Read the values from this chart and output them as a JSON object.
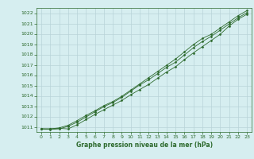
{
  "x": [
    0,
    1,
    2,
    3,
    4,
    5,
    6,
    7,
    8,
    9,
    10,
    11,
    12,
    13,
    14,
    15,
    16,
    17,
    18,
    19,
    20,
    21,
    22,
    23
  ],
  "line1": [
    1010.8,
    1010.8,
    1010.85,
    1010.8,
    1011.2,
    1011.7,
    1012.2,
    1012.65,
    1013.1,
    1013.55,
    1014.1,
    1014.6,
    1015.1,
    1015.7,
    1016.3,
    1016.8,
    1017.5,
    1018.15,
    1018.75,
    1019.35,
    1019.95,
    1020.75,
    1021.4,
    1021.9
  ],
  "line2": [
    1010.8,
    1010.75,
    1010.8,
    1011.05,
    1011.45,
    1011.95,
    1012.45,
    1012.95,
    1013.35,
    1013.85,
    1014.45,
    1015.05,
    1015.55,
    1016.15,
    1016.75,
    1017.25,
    1017.95,
    1018.65,
    1019.25,
    1019.75,
    1020.35,
    1020.95,
    1021.55,
    1022.05
  ],
  "line3": [
    1010.8,
    1010.8,
    1010.9,
    1011.15,
    1011.6,
    1012.1,
    1012.55,
    1013.05,
    1013.45,
    1013.95,
    1014.55,
    1015.15,
    1015.75,
    1016.35,
    1016.95,
    1017.55,
    1018.25,
    1018.95,
    1019.55,
    1019.95,
    1020.55,
    1021.15,
    1021.75,
    1022.25
  ],
  "line_color": "#2d6a2d",
  "bg_color": "#d6eef0",
  "grid_color": "#b8d4d8",
  "xlabel": "Graphe pression niveau de la mer (hPa)",
  "xlim": [
    -0.5,
    23.5
  ],
  "ylim": [
    1010.5,
    1022.5
  ],
  "yticks": [
    1011,
    1012,
    1013,
    1014,
    1015,
    1016,
    1017,
    1018,
    1019,
    1020,
    1021,
    1022
  ],
  "xticks": [
    0,
    1,
    2,
    3,
    4,
    5,
    6,
    7,
    8,
    9,
    10,
    11,
    12,
    13,
    14,
    15,
    16,
    17,
    18,
    19,
    20,
    21,
    22,
    23
  ]
}
